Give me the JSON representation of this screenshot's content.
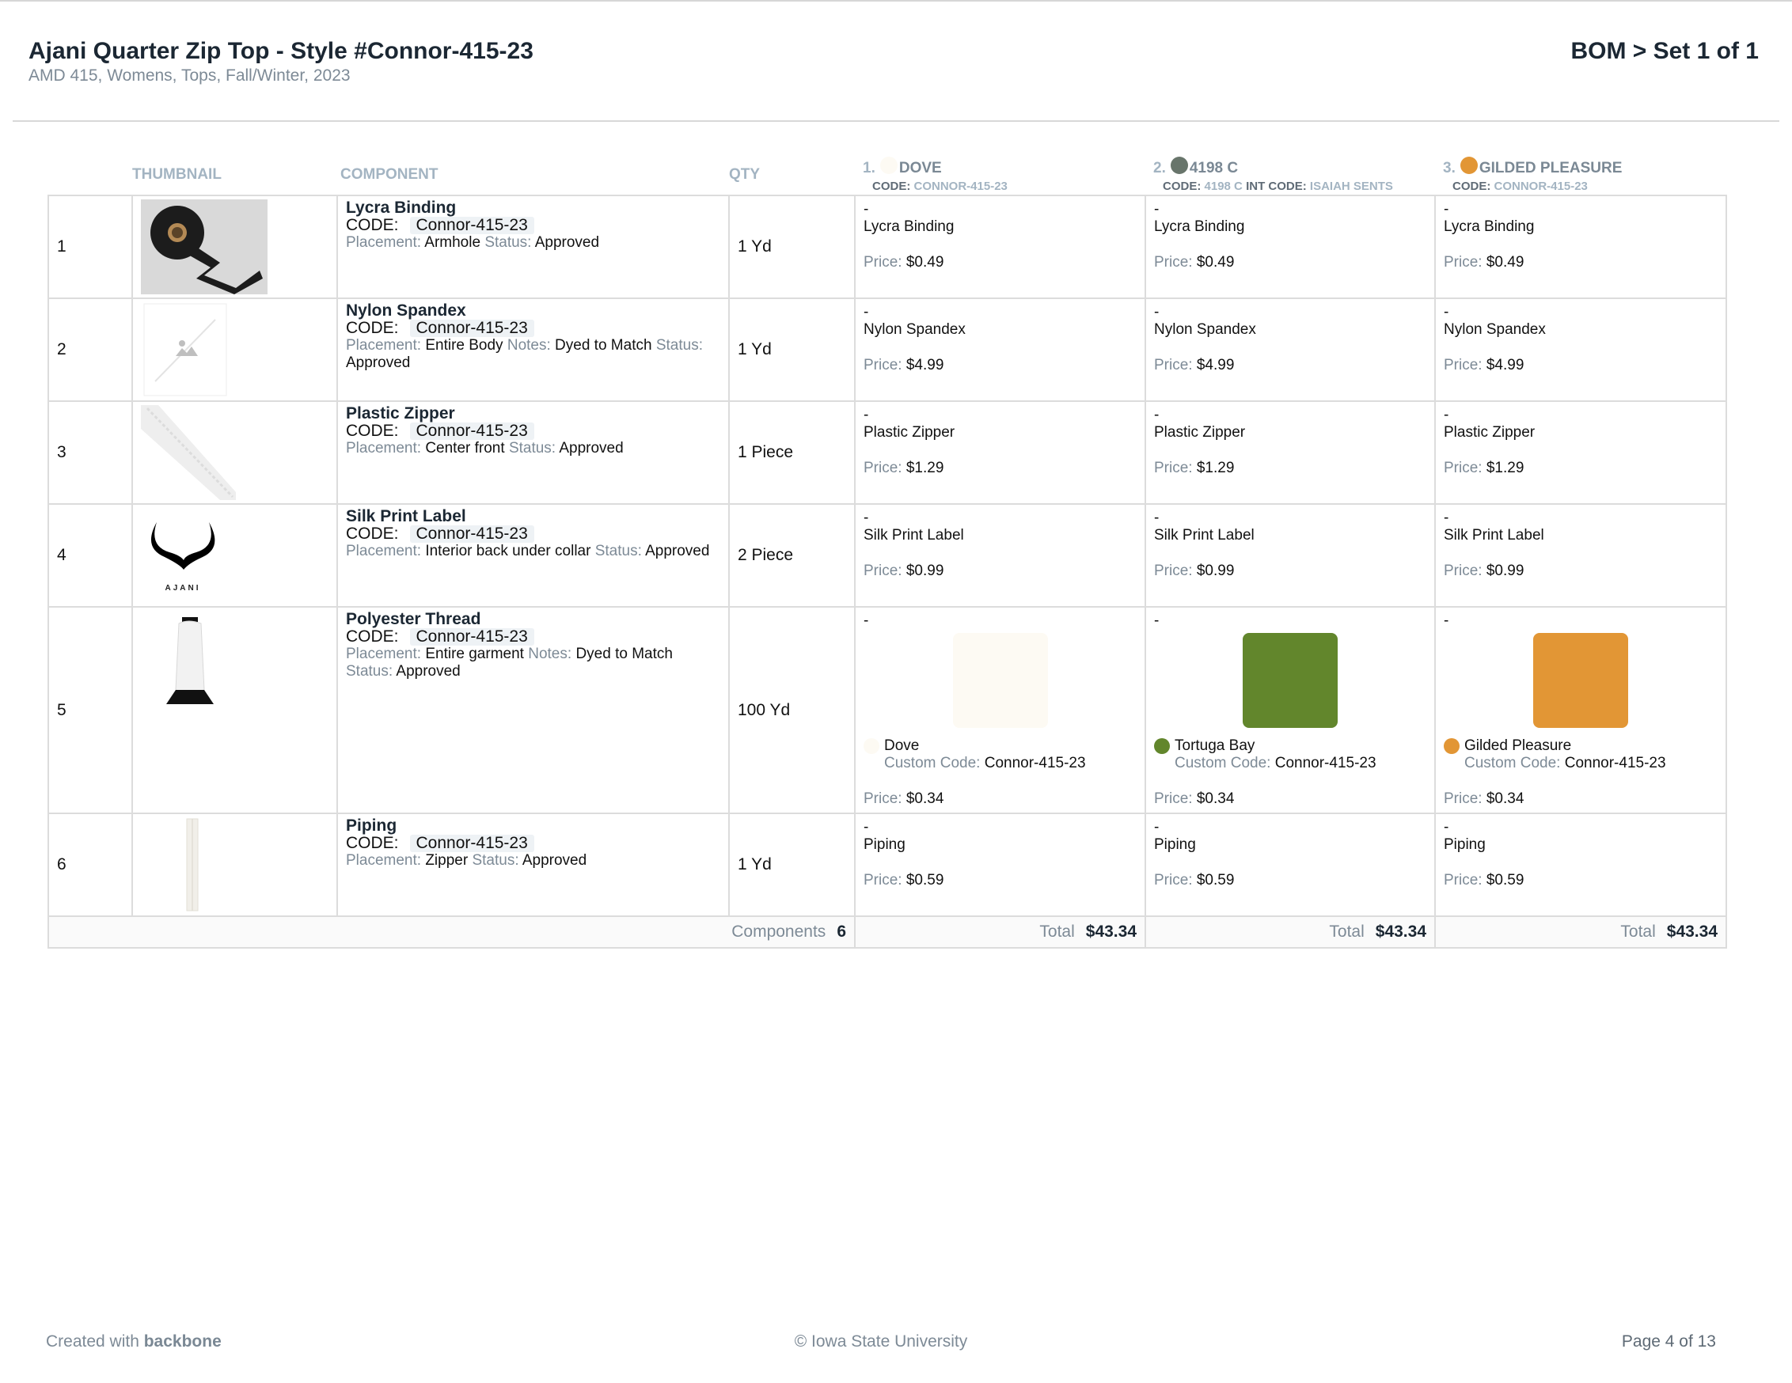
{
  "header": {
    "title": "Ajani Quarter Zip Top - Style #Connor-415-23",
    "subtitle": "AMD 415, Womens, Tops, Fall/Winter, 2023",
    "bom_set": "BOM > Set 1 of 1"
  },
  "columns": {
    "thumbnail": "THUMBNAIL",
    "component": "COMPONENT",
    "qty": "QTY"
  },
  "labels": {
    "code": "CODE:",
    "placement": "Placement:",
    "notes": "Notes:",
    "status": "Status:",
    "price": "Price:",
    "custom_code": "Custom Code:",
    "dash": "-",
    "components": "Components",
    "total": "Total"
  },
  "colorways": [
    {
      "num": "1.",
      "name": "DOVE",
      "code_label": "CODE:",
      "code": "CONNOR-415-23",
      "int_code_label": "",
      "int_code": "",
      "color": "#fdfaf3"
    },
    {
      "num": "2.",
      "name": "4198 C",
      "code_label": "CODE:",
      "code": "4198 C",
      "int_code_label": "INT CODE:",
      "int_code": "ISAIAH SENTS",
      "color": "#68756b"
    },
    {
      "num": "3.",
      "name": "GILDED PLEASURE",
      "code_label": "CODE:",
      "code": "CONNOR-415-23",
      "int_code_label": "",
      "int_code": "",
      "color": "#e29635"
    }
  ],
  "rows": [
    {
      "num": "1",
      "name": "Lycra Binding",
      "code": "Connor-415-23",
      "placement": "Armhole",
      "notes": "",
      "status": "Approved",
      "qty": "1 Yd",
      "cells": [
        {
          "dash": "-",
          "material": "Lycra Binding",
          "price": "$0.49"
        },
        {
          "dash": "-",
          "material": "Lycra Binding",
          "price": "$0.49"
        },
        {
          "dash": "-",
          "material": "Lycra Binding",
          "price": "$0.49"
        }
      ]
    },
    {
      "num": "2",
      "name": "Nylon Spandex",
      "code": "Connor-415-23",
      "placement": "Entire Body",
      "notes": "Dyed to Match",
      "status": "Approved",
      "qty": "1 Yd",
      "cells": [
        {
          "dash": "-",
          "material": "Nylon Spandex",
          "price": "$4.99"
        },
        {
          "dash": "-",
          "material": "Nylon Spandex",
          "price": "$4.99"
        },
        {
          "dash": "-",
          "material": "Nylon Spandex",
          "price": "$4.99"
        }
      ]
    },
    {
      "num": "3",
      "name": "Plastic Zipper",
      "code": "Connor-415-23",
      "placement": "Center front",
      "notes": "",
      "status": "Approved",
      "qty": "1 Piece",
      "cells": [
        {
          "dash": "-",
          "material": "Plastic Zipper",
          "price": "$1.29"
        },
        {
          "dash": "-",
          "material": "Plastic Zipper",
          "price": "$1.29"
        },
        {
          "dash": "-",
          "material": "Plastic Zipper",
          "price": "$1.29"
        }
      ]
    },
    {
      "num": "4",
      "name": "Silk Print Label",
      "code": "Connor-415-23",
      "placement": "Interior back under collar",
      "notes": "",
      "status": "Approved",
      "qty": "2 Piece",
      "cells": [
        {
          "dash": "-",
          "material": "Silk Print Label",
          "price": "$0.99"
        },
        {
          "dash": "-",
          "material": "Silk Print Label",
          "price": "$0.99"
        },
        {
          "dash": "-",
          "material": "Silk Print Label",
          "price": "$0.99"
        }
      ]
    },
    {
      "num": "5",
      "name": "Polyester Thread",
      "code": "Connor-415-23",
      "placement": "Entire garment",
      "notes": "Dyed to Match",
      "status": "Approved",
      "qty": "100 Yd",
      "cells": [
        {
          "dash": "-",
          "color_name": "Dove",
          "custom_code": "Connor-415-23",
          "price": "$0.34",
          "swatch": "#fdfaf3"
        },
        {
          "dash": "-",
          "color_name": "Tortuga Bay",
          "custom_code": "Connor-415-23",
          "price": "$0.34",
          "swatch": "#62862c"
        },
        {
          "dash": "-",
          "color_name": "Gilded Pleasure",
          "custom_code": "Connor-415-23",
          "price": "$0.34",
          "swatch": "#e29635"
        }
      ]
    },
    {
      "num": "6",
      "name": "Piping",
      "code": "Connor-415-23",
      "placement": "Zipper",
      "notes": "",
      "status": "Approved",
      "qty": "1 Yd",
      "cells": [
        {
          "dash": "-",
          "material": "Piping",
          "price": "$0.59"
        },
        {
          "dash": "-",
          "material": "Piping",
          "price": "$0.59"
        },
        {
          "dash": "-",
          "material": "Piping",
          "price": "$0.59"
        }
      ]
    }
  ],
  "totals": {
    "components_count": "6",
    "totals": [
      "$43.34",
      "$43.34",
      "$43.34"
    ]
  },
  "thumbnails": [
    "lycra-binding-roll-image",
    "placeholder-image-icon",
    "plastic-zipper-image",
    "ajani-logo-label-image",
    "thread-spool-image",
    "piping-image"
  ],
  "label_logo_text": "AJANI",
  "footer": {
    "created_prefix": "Created with",
    "brand": "backbone",
    "copyright": "© Iowa State University",
    "page": "Page 4 of 13"
  }
}
